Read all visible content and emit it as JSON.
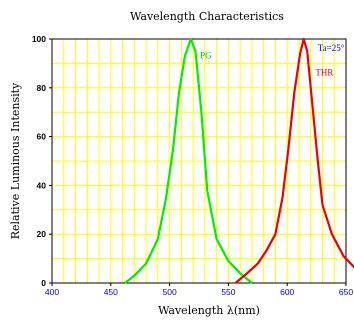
{
  "chart_data": {
    "type": "line",
    "title": "Wavelength Characteristics",
    "xlabel": "Wavelength λ(nm)",
    "ylabel": "Relative Luminous Intensity",
    "xlim": [
      400,
      650
    ],
    "ylim": [
      0,
      100
    ],
    "x_ticks": [
      400,
      450,
      500,
      550,
      600,
      650
    ],
    "x_tick_labels": [
      "400",
      "450",
      "500",
      "550",
      "600",
      "650"
    ],
    "y_ticks": [
      0,
      20,
      40,
      60,
      80,
      100
    ],
    "y_tick_labels": [
      "0",
      "20",
      "40",
      "60",
      "80",
      "100"
    ],
    "grid": true,
    "grid_color": "#ffff00",
    "condition": "Ta=25°",
    "condition_color": "#0000ff",
    "series": [
      {
        "name": "PG",
        "color": "#00ee00",
        "label_color": "#00cc00",
        "points": [
          [
            462,
            0
          ],
          [
            470,
            3
          ],
          [
            480,
            8
          ],
          [
            490,
            18
          ],
          [
            497,
            35
          ],
          [
            503,
            55
          ],
          [
            508,
            78
          ],
          [
            513,
            93
          ],
          [
            518,
            100
          ],
          [
            522,
            95
          ],
          [
            527,
            70
          ],
          [
            532,
            38
          ],
          [
            540,
            18
          ],
          [
            550,
            9
          ],
          [
            560,
            4
          ],
          [
            570,
            0
          ]
        ]
      },
      {
        "name": "THR",
        "color": "#ee0000",
        "label_color": "#ee0000",
        "points": [
          [
            556,
            0
          ],
          [
            566,
            4
          ],
          [
            575,
            8
          ],
          [
            582,
            13
          ],
          [
            590,
            20
          ],
          [
            596,
            35
          ],
          [
            601,
            55
          ],
          [
            606,
            78
          ],
          [
            611,
            94
          ],
          [
            614,
            100
          ],
          [
            617,
            95
          ],
          [
            622,
            70
          ],
          [
            626,
            50
          ],
          [
            630,
            32
          ],
          [
            638,
            20
          ],
          [
            648,
            11
          ],
          [
            658,
            6
          ],
          [
            670,
            0
          ]
        ]
      }
    ]
  }
}
